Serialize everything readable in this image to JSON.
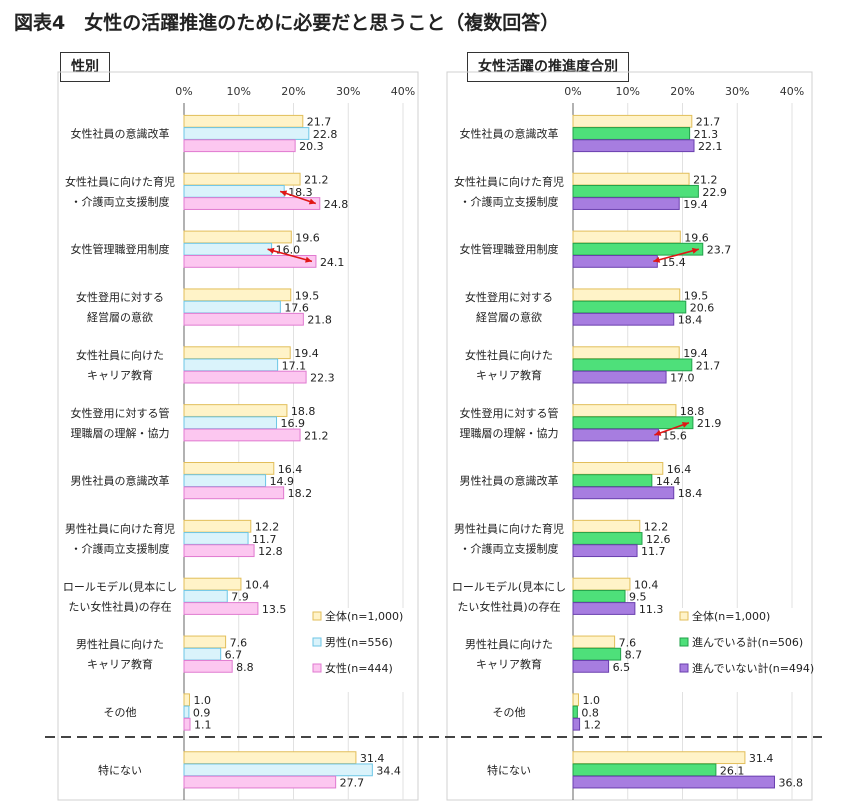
{
  "figure_title": "図表4　女性の活躍推進のために必要だと思うこと（複数回答）",
  "chart_data": [
    {
      "type": "bar",
      "orientation": "horizontal",
      "panel_title": "性別",
      "xlim": [
        0,
        40
      ],
      "ticks": [
        "0%",
        "10%",
        "20%",
        "30%",
        "40%"
      ],
      "grid": true,
      "legend_position": "bottom-right",
      "categories": [
        [
          "女性社員の意識改革"
        ],
        [
          "女性社員に向けた育児",
          "・介護両立支援制度"
        ],
        [
          "女性管理職登用制度"
        ],
        [
          "女性登用に対する",
          "経営層の意欲"
        ],
        [
          "女性社員に向けた",
          "キャリア教育"
        ],
        [
          "女性登用に対する管",
          "理職層の理解・協力"
        ],
        [
          "男性社員の意識改革"
        ],
        [
          "男性社員に向けた育児",
          "・介護両立支援制度"
        ],
        [
          "ロールモデル(見本にし",
          "たい女性社員)の存在"
        ],
        [
          "男性社員に向けた",
          "キャリア教育"
        ],
        [
          "その他"
        ],
        [
          "特にない"
        ]
      ],
      "series": [
        {
          "name": "全体(n=1,000)",
          "color": "#fff3c8",
          "stroke": "#e2be5a",
          "values": [
            21.7,
            21.2,
            19.6,
            19.5,
            19.4,
            18.8,
            16.4,
            12.2,
            10.4,
            7.6,
            1.0,
            31.4
          ]
        },
        {
          "name": "男性(n=556)",
          "color": "#daf3fb",
          "stroke": "#6cc6e6",
          "values": [
            22.8,
            18.3,
            16.0,
            17.6,
            17.1,
            16.9,
            14.9,
            11.7,
            7.9,
            6.7,
            0.9,
            34.4
          ]
        },
        {
          "name": "女性(n=444)",
          "color": "#fcc7f0",
          "stroke": "#e07ad0",
          "values": [
            20.3,
            24.8,
            24.1,
            21.8,
            22.3,
            21.2,
            18.2,
            12.8,
            13.5,
            8.8,
            1.1,
            27.7
          ]
        }
      ],
      "highlight_arrows": [
        1,
        2
      ]
    },
    {
      "type": "bar",
      "orientation": "horizontal",
      "panel_title": "女性活躍の推進度合別",
      "xlim": [
        0,
        40
      ],
      "ticks": [
        "0%",
        "10%",
        "20%",
        "30%",
        "40%"
      ],
      "grid": true,
      "legend_position": "bottom-right",
      "categories": [
        [
          "女性社員の意識改革"
        ],
        [
          "女性社員に向けた育児",
          "・介護両立支援制度"
        ],
        [
          "女性管理職登用制度"
        ],
        [
          "女性登用に対する",
          "経営層の意欲"
        ],
        [
          "女性社員に向けた",
          "キャリア教育"
        ],
        [
          "女性登用に対する管",
          "理職層の理解・協力"
        ],
        [
          "男性社員の意識改革"
        ],
        [
          "男性社員に向けた育児",
          "・介護両立支援制度"
        ],
        [
          "ロールモデル(見本にし",
          "たい女性社員)の存在"
        ],
        [
          "男性社員に向けた",
          "キャリア教育"
        ],
        [
          "その他"
        ],
        [
          "特にない"
        ]
      ],
      "series": [
        {
          "name": "全体(n=1,000)",
          "color": "#fff3c8",
          "stroke": "#e2be5a",
          "values": [
            21.7,
            21.2,
            19.6,
            19.5,
            19.4,
            18.8,
            16.4,
            12.2,
            10.4,
            7.6,
            1.0,
            31.4
          ]
        },
        {
          "name": "進んでいる計(n=506)",
          "color": "#4ee07a",
          "stroke": "#22a04a",
          "values": [
            21.3,
            22.9,
            23.7,
            20.6,
            21.7,
            21.9,
            14.4,
            12.6,
            9.5,
            8.7,
            0.8,
            26.1
          ]
        },
        {
          "name": "進んでいない計(n=494)",
          "color": "#a77de0",
          "stroke": "#6a3fae",
          "values": [
            22.1,
            19.4,
            15.4,
            18.4,
            17.0,
            15.6,
            18.4,
            11.7,
            11.3,
            6.5,
            1.2,
            36.8
          ]
        }
      ],
      "highlight_arrows": [
        2,
        5
      ]
    }
  ]
}
